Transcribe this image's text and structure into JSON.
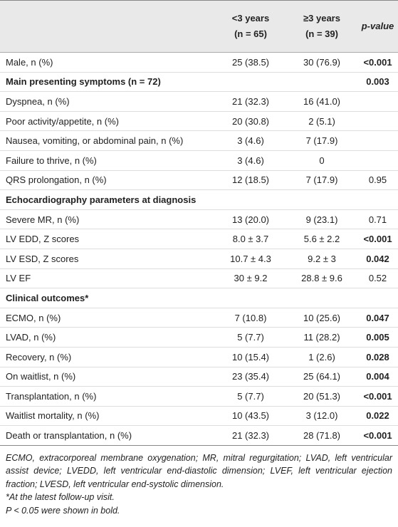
{
  "table": {
    "header": {
      "columns": [
        {
          "line1": "<3 years",
          "line2": "(n = 65)"
        },
        {
          "line1": "≥3 years",
          "line2": "(n = 39)"
        },
        {
          "line1": "p-value"
        }
      ]
    },
    "rows": [
      {
        "label": "Male, n (%)",
        "a": "25 (38.5)",
        "b": "30 (76.9)",
        "p": "<0.001",
        "p_bold": true
      },
      {
        "label": "Main presenting symptoms (n = 72)",
        "section": true,
        "p": "0.003",
        "p_bold": true
      },
      {
        "label": "Dyspnea, n (%)",
        "a": "21 (32.3)",
        "b": "16 (41.0)"
      },
      {
        "label": "Poor activity/appetite, n (%)",
        "a": "20 (30.8)",
        "b": "2 (5.1)"
      },
      {
        "label": "Nausea, vomiting, or abdominal pain, n (%)",
        "a": "3 (4.6)",
        "b": "7 (17.9)"
      },
      {
        "label": "Failure to thrive, n (%)",
        "a": "3 (4.6)",
        "b": "0"
      },
      {
        "label": "QRS prolongation, n (%)",
        "a": "12 (18.5)",
        "b": "7 (17.9)",
        "p": "0.95"
      },
      {
        "label": "Echocardiography parameters at diagnosis",
        "section": true
      },
      {
        "label": "Severe MR, n (%)",
        "a": "13 (20.0)",
        "b": "9 (23.1)",
        "p": "0.71"
      },
      {
        "label": "LV EDD, Z scores",
        "a": "8.0 ± 3.7",
        "b": "5.6 ± 2.2",
        "p": "<0.001",
        "p_bold": true
      },
      {
        "label": "LV ESD, Z scores",
        "a": "10.7 ± 4.3",
        "b": "9.2 ± 3",
        "p": "0.042",
        "p_bold": true
      },
      {
        "label": "LV EF",
        "a": "30 ± 9.2",
        "b": "28.8 ± 9.6",
        "p": "0.52"
      },
      {
        "label": "Clinical outcomes*",
        "section": true
      },
      {
        "label": "ECMO, n (%)",
        "a": "7 (10.8)",
        "b": "10 (25.6)",
        "p": "0.047",
        "p_bold": true
      },
      {
        "label": "LVAD, n (%)",
        "a": "5 (7.7)",
        "b": "11 (28.2)",
        "p": "0.005",
        "p_bold": true
      },
      {
        "label": "Recovery, n (%)",
        "a": "10 (15.4)",
        "b": "1 (2.6)",
        "p": "0.028",
        "p_bold": true
      },
      {
        "label": "On waitlist, n (%)",
        "a": "23 (35.4)",
        "b": "25 (64.1)",
        "p": "0.004",
        "p_bold": true
      },
      {
        "label": "Transplantation, n (%)",
        "a": "5 (7.7)",
        "b": "20 (51.3)",
        "p": "<0.001",
        "p_bold": true
      },
      {
        "label": "Waitlist mortality, n (%)",
        "a": "10 (43.5)",
        "b": "3 (12.0)",
        "p": "0.022",
        "p_bold": true
      },
      {
        "label": "Death or transplantation, n (%)",
        "a": "21 (32.3)",
        "b": "28 (71.8)",
        "p": "<0.001",
        "p_bold": true
      }
    ],
    "footnotes": [
      "ECMO, extracorporeal membrane oxygenation; MR, mitral regurgitation; LVAD, left ventricular assist device; LVEDD, left ventricular end-diastolic dimension; LVEF, left ventricular ejection fraction; LVESD, left ventricular end-systolic dimension.",
      "*At the latest follow-up visit.",
      "P < 0.05 were shown in bold."
    ]
  }
}
